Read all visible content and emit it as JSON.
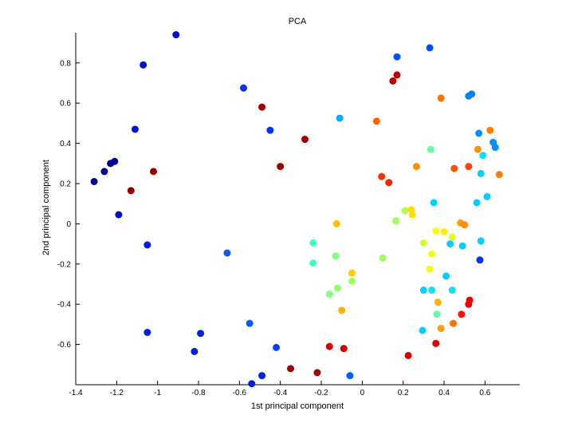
{
  "chart_data": {
    "type": "scatter",
    "title": "PCA",
    "xlabel": "1st principal component",
    "ylabel": "2nd principal component",
    "xlim": [
      -1.4,
      0.77
    ],
    "ylim": [
      -0.8,
      0.95
    ],
    "xticks": [
      -1.4,
      -1.2,
      -1,
      -0.8,
      -0.6,
      -0.4,
      -0.2,
      0,
      0.2,
      0.4,
      0.6
    ],
    "xtick_labels": [
      "-1.4",
      "-1.2",
      "-1",
      "-0.8",
      "-0.6",
      "-0.4",
      "-0.2",
      "0",
      "0.2",
      "0.4",
      "0.6"
    ],
    "yticks": [
      -0.6,
      -0.4,
      -0.2,
      0,
      0.2,
      0.4,
      0.6,
      0.8
    ],
    "ytick_labels": [
      "-0.6",
      "-0.4",
      "-0.2",
      "0",
      "0.2",
      "0.4",
      "0.6",
      "0.8"
    ],
    "grid": false,
    "legend": "none",
    "points": [
      {
        "x": -1.31,
        "y": 0.21,
        "color": "#00008f"
      },
      {
        "x": -1.26,
        "y": 0.26,
        "color": "#00008f"
      },
      {
        "x": -1.23,
        "y": 0.3,
        "color": "#00008f"
      },
      {
        "x": -1.21,
        "y": 0.31,
        "color": "#00008f"
      },
      {
        "x": -1.19,
        "y": 0.045,
        "color": "#0010cc"
      },
      {
        "x": -1.11,
        "y": 0.47,
        "color": "#0010cc"
      },
      {
        "x": -1.07,
        "y": 0.79,
        "color": "#0010cc"
      },
      {
        "x": -0.91,
        "y": 0.94,
        "color": "#0010cc"
      },
      {
        "x": -1.05,
        "y": -0.105,
        "color": "#0020e0"
      },
      {
        "x": -1.05,
        "y": -0.54,
        "color": "#0020e0"
      },
      {
        "x": -0.79,
        "y": -0.545,
        "color": "#0020e0"
      },
      {
        "x": -0.82,
        "y": -0.635,
        "color": "#0020e0"
      },
      {
        "x": -0.58,
        "y": 0.675,
        "color": "#0030ff"
      },
      {
        "x": -0.45,
        "y": 0.465,
        "color": "#0030ff"
      },
      {
        "x": -0.49,
        "y": -0.755,
        "color": "#0020e0"
      },
      {
        "x": -0.54,
        "y": -0.795,
        "color": "#0020e0"
      },
      {
        "x": -0.42,
        "y": -0.615,
        "color": "#0040ff"
      },
      {
        "x": -0.66,
        "y": -0.145,
        "color": "#0060ff"
      },
      {
        "x": -0.55,
        "y": -0.495,
        "color": "#0060ff"
      },
      {
        "x": -0.06,
        "y": -0.755,
        "color": "#0060ff"
      },
      {
        "x": 0.17,
        "y": 0.83,
        "color": "#0050ff"
      },
      {
        "x": 0.33,
        "y": 0.875,
        "color": "#0050ff"
      },
      {
        "x": 0.52,
        "y": 0.635,
        "color": "#0080ff"
      },
      {
        "x": 0.535,
        "y": 0.645,
        "color": "#0080ff"
      },
      {
        "x": 0.57,
        "y": 0.45,
        "color": "#0090ff"
      },
      {
        "x": 0.64,
        "y": 0.405,
        "color": "#0090ff"
      },
      {
        "x": 0.65,
        "y": 0.38,
        "color": "#0090ff"
      },
      {
        "x": 0.575,
        "y": -0.18,
        "color": "#0030ff"
      },
      {
        "x": -0.11,
        "y": 0.525,
        "color": "#00b0ff"
      },
      {
        "x": 0.58,
        "y": 0.25,
        "color": "#00d0ff"
      },
      {
        "x": 0.56,
        "y": 0.105,
        "color": "#00d0ff"
      },
      {
        "x": 0.61,
        "y": 0.135,
        "color": "#00d0ff"
      },
      {
        "x": 0.59,
        "y": 0.34,
        "color": "#00e0ff"
      },
      {
        "x": 0.35,
        "y": 0.105,
        "color": "#00d0ff"
      },
      {
        "x": 0.58,
        "y": -0.085,
        "color": "#00d0ff"
      },
      {
        "x": 0.43,
        "y": -0.1,
        "color": "#00d0ff"
      },
      {
        "x": 0.49,
        "y": -0.11,
        "color": "#00d0ff"
      },
      {
        "x": 0.41,
        "y": -0.26,
        "color": "#00d0ff"
      },
      {
        "x": 0.3,
        "y": -0.33,
        "color": "#00d0ff"
      },
      {
        "x": 0.34,
        "y": -0.33,
        "color": "#10e0ef"
      },
      {
        "x": 0.44,
        "y": -0.33,
        "color": "#10e0ef"
      },
      {
        "x": 0.295,
        "y": -0.53,
        "color": "#00d0ff"
      },
      {
        "x": -0.24,
        "y": -0.095,
        "color": "#40ffbf"
      },
      {
        "x": -0.24,
        "y": -0.195,
        "color": "#40ffbf"
      },
      {
        "x": 0.335,
        "y": 0.37,
        "color": "#60ff9f"
      },
      {
        "x": 0.365,
        "y": -0.45,
        "color": "#60ff9f"
      },
      {
        "x": -0.16,
        "y": -0.35,
        "color": "#80ff80"
      },
      {
        "x": -0.13,
        "y": -0.16,
        "color": "#80ff80"
      },
      {
        "x": -0.12,
        "y": -0.32,
        "color": "#90ff70"
      },
      {
        "x": -0.05,
        "y": -0.285,
        "color": "#a0ff60"
      },
      {
        "x": 0.1,
        "y": -0.17,
        "color": "#a0ff60"
      },
      {
        "x": 0.165,
        "y": 0.015,
        "color": "#a0ff60"
      },
      {
        "x": 0.21,
        "y": 0.065,
        "color": "#b0ff50"
      },
      {
        "x": 0.3,
        "y": -0.095,
        "color": "#d0ff30"
      },
      {
        "x": 0.44,
        "y": -0.065,
        "color": "#e0ff20"
      },
      {
        "x": 0.33,
        "y": -0.225,
        "color": "#f0ff10"
      },
      {
        "x": 0.34,
        "y": -0.15,
        "color": "#f0ff10"
      },
      {
        "x": 0.36,
        "y": -0.035,
        "color": "#ffff00"
      },
      {
        "x": 0.4,
        "y": -0.04,
        "color": "#ffef00"
      },
      {
        "x": 0.24,
        "y": 0.07,
        "color": "#ffe000"
      },
      {
        "x": 0.245,
        "y": 0.045,
        "color": "#ffe000"
      },
      {
        "x": -0.05,
        "y": -0.245,
        "color": "#ffd000"
      },
      {
        "x": -0.125,
        "y": 0.0,
        "color": "#ffc000"
      },
      {
        "x": -0.1,
        "y": -0.43,
        "color": "#ffb000"
      },
      {
        "x": 0.37,
        "y": -0.39,
        "color": "#ffb000"
      },
      {
        "x": 0.385,
        "y": -0.52,
        "color": "#ffa000"
      },
      {
        "x": 0.48,
        "y": 0.005,
        "color": "#ffa000"
      },
      {
        "x": 0.5,
        "y": -0.005,
        "color": "#ff9000"
      },
      {
        "x": 0.265,
        "y": 0.285,
        "color": "#ff9000"
      },
      {
        "x": 0.565,
        "y": 0.37,
        "color": "#ff9000"
      },
      {
        "x": 0.67,
        "y": 0.245,
        "color": "#ff8000"
      },
      {
        "x": 0.625,
        "y": 0.465,
        "color": "#ff8000"
      },
      {
        "x": 0.385,
        "y": 0.625,
        "color": "#ff7000"
      },
      {
        "x": 0.445,
        "y": -0.495,
        "color": "#ff7000"
      },
      {
        "x": 0.07,
        "y": 0.51,
        "color": "#ff6000"
      },
      {
        "x": 0.45,
        "y": 0.275,
        "color": "#ff5000"
      },
      {
        "x": 0.52,
        "y": 0.285,
        "color": "#ff4000"
      },
      {
        "x": 0.095,
        "y": 0.235,
        "color": "#ff3000"
      },
      {
        "x": 0.13,
        "y": 0.205,
        "color": "#ff2000"
      },
      {
        "x": 0.485,
        "y": -0.45,
        "color": "#ff1000"
      },
      {
        "x": 0.525,
        "y": -0.38,
        "color": "#f00000"
      },
      {
        "x": 0.52,
        "y": -0.4,
        "color": "#f00000"
      },
      {
        "x": 0.36,
        "y": -0.595,
        "color": "#e00000"
      },
      {
        "x": 0.225,
        "y": -0.655,
        "color": "#e00000"
      },
      {
        "x": -0.16,
        "y": -0.61,
        "color": "#e00000"
      },
      {
        "x": -0.09,
        "y": -0.62,
        "color": "#d00000"
      },
      {
        "x": 0.15,
        "y": 0.71,
        "color": "#c00000"
      },
      {
        "x": 0.17,
        "y": 0.74,
        "color": "#c00000"
      },
      {
        "x": -0.22,
        "y": -0.74,
        "color": "#a00000"
      },
      {
        "x": -0.35,
        "y": -0.72,
        "color": "#a00000"
      },
      {
        "x": -0.49,
        "y": 0.58,
        "color": "#a00000"
      },
      {
        "x": -0.28,
        "y": 0.42,
        "color": "#a00000"
      },
      {
        "x": -0.4,
        "y": 0.285,
        "color": "#a00000"
      },
      {
        "x": -1.02,
        "y": 0.26,
        "color": "#900000"
      },
      {
        "x": -1.13,
        "y": 0.165,
        "color": "#900000"
      }
    ]
  }
}
